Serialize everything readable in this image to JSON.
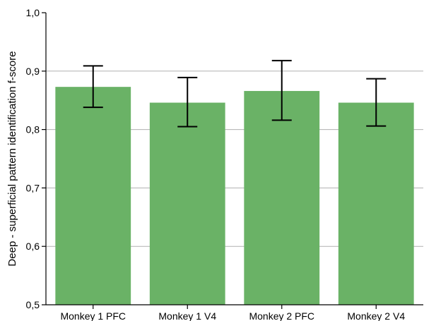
{
  "chart_data": {
    "type": "bar",
    "title": "",
    "xlabel": "",
    "ylabel": "Deep - superficial pattern identification f-score",
    "categories": [
      "Monkey 1 PFC",
      "Monkey 1 V4",
      "Monkey 2 PFC",
      "Monkey 2 V4"
    ],
    "values": [
      0.873,
      0.846,
      0.866,
      0.846
    ],
    "error_low": [
      0.838,
      0.805,
      0.816,
      0.806
    ],
    "error_high": [
      0.909,
      0.889,
      0.918,
      0.887
    ],
    "ylim": [
      0.5,
      1.0
    ],
    "yticks": [
      0.5,
      0.6,
      0.7,
      0.8,
      0.9,
      1.0
    ],
    "ytick_labels": [
      "0,5",
      "0,6",
      "0,7",
      "0,8",
      "0,9",
      "1,0"
    ],
    "grid": "horizontal",
    "colors": {
      "bar": "#6ab266",
      "error_bar": "#000000",
      "grid": "#b0b0b0",
      "axis": "#000000"
    }
  }
}
